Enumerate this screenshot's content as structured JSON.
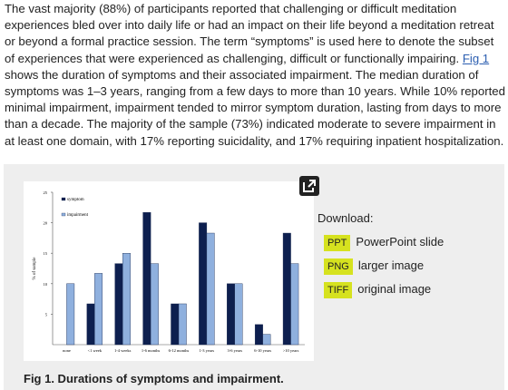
{
  "article": {
    "text_before": "The vast majority (88%) of participants reported that challenging or difficult meditation experiences bled over into daily life or had an impact on their life beyond a meditation retreat or beyond a formal practice session. The term “symptoms” is used here to denote the subset of experiences that were experienced as challenging, difficult or functionally impairing. ",
    "link": "Fig 1",
    "text_after": " shows the duration of symptoms and their associated impairment. The median duration of symptoms was 1–3 years, ranging from a few days to more than 10 years. While 10% reported minimal impairment, impairment tended to mirror symptom duration, lasting from days to more than a decade. The majority of the sample (73%) indicated moderate to severe impairment in at least one domain, with 17% reporting suicidality, and 17% requiring inpatient hospitalization."
  },
  "figure": {
    "download_label": "Download:",
    "downloads": [
      {
        "badge": "PPT",
        "label": "PowerPoint slide"
      },
      {
        "badge": "PNG",
        "label": "larger image"
      },
      {
        "badge": "TIFF",
        "label": "original image"
      }
    ],
    "caption": "Fig 1. Durations of symptoms and impairment."
  },
  "chart_data": {
    "type": "bar",
    "y_label": "% of sample",
    "categories": [
      "none",
      "<1 week",
      "1-4 weeks",
      "1-6 months",
      "6-12 months",
      "1-3 years",
      "3-6 years",
      "6-10 years",
      ">10 years"
    ],
    "series": [
      {
        "name": "symptom",
        "color": "#0d1f4f",
        "values": [
          0,
          6.7,
          13.3,
          21.7,
          6.7,
          20,
          10,
          3.3,
          18.3
        ]
      },
      {
        "name": "impairment",
        "color": "#8fb0de",
        "values": [
          10,
          11.7,
          15,
          13.3,
          6.7,
          18.3,
          10,
          1.7,
          13.3
        ]
      }
    ],
    "ylim": [
      0,
      25
    ],
    "yticks": [
      5,
      10,
      15,
      20,
      25
    ],
    "grid": false,
    "legend": "upper left"
  }
}
